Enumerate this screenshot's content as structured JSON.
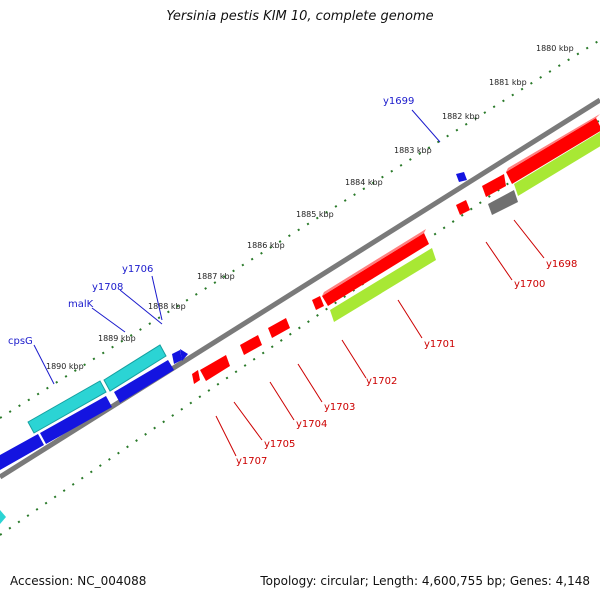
{
  "title": "Yersinia pestis KIM 10, complete genome",
  "footer": {
    "accession": "Accession: NC_004088",
    "summary": "Topology: circular; Length: 4,600,755 bp; Genes: 4,148"
  },
  "colors": {
    "backbone": "#808080",
    "forward_teal": "#2bd4d4",
    "forward_blue": "#1414e0",
    "reverse_red": "#ff0000",
    "lime": "#a8e834",
    "gray_feature": "#707070",
    "forward_label": "#1a1acc",
    "reverse_label": "#cc0000",
    "tick_green": "#2a7a2a"
  },
  "kbp_labels": [
    "1880 kbp",
    "1881 kbp",
    "1882 kbp",
    "1883 kbp",
    "1884 kbp",
    "1885 kbp",
    "1886 kbp",
    "1887 kbp",
    "1888 kbp",
    "1889 kbp",
    "1890 kbp"
  ],
  "forward_gene_labels": [
    "y1699",
    "y1706",
    "y1708",
    "malK",
    "cpsG"
  ],
  "reverse_gene_labels": [
    "y1698",
    "y1700",
    "y1701",
    "y1702",
    "y1703",
    "y1704",
    "y1705",
    "y1707"
  ]
}
